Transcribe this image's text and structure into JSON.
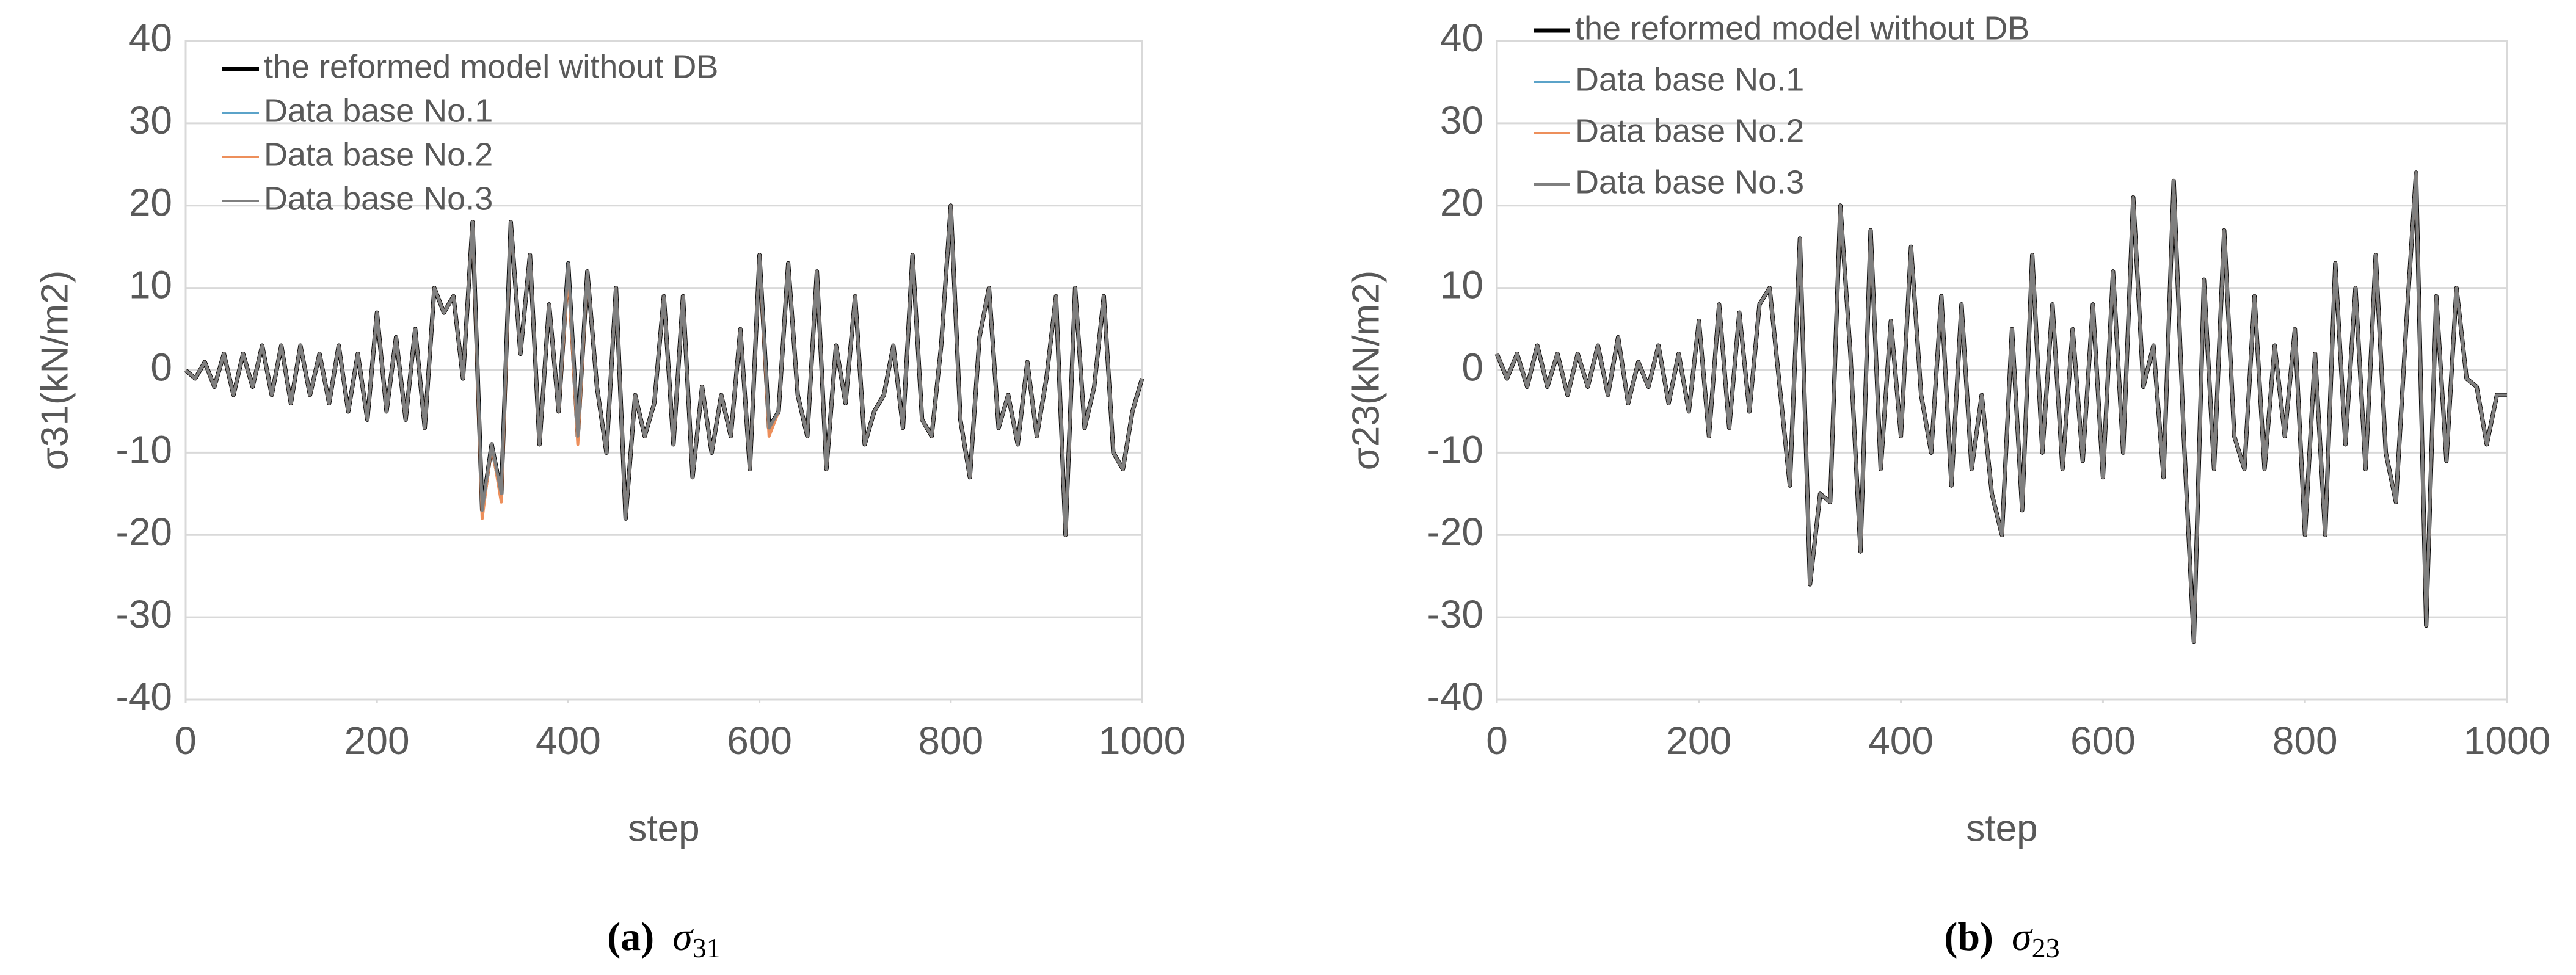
{
  "chart_data": [
    {
      "type": "line",
      "caption_label": "(a)",
      "caption_symbol": "σ",
      "caption_sub": "31",
      "xlabel": "step",
      "ylabel": "σ31(kN/m2)",
      "legend": "upper left",
      "grid": true,
      "xlim": [
        0,
        1000
      ],
      "xticks": [
        0,
        200,
        400,
        600,
        800,
        1000
      ],
      "ylim": [
        -40,
        40
      ],
      "yticks": [
        -40,
        -30,
        -20,
        -10,
        0,
        10,
        20,
        30,
        40
      ],
      "x": [
        0,
        10,
        20,
        30,
        40,
        50,
        60,
        70,
        80,
        90,
        100,
        110,
        120,
        130,
        140,
        150,
        160,
        170,
        180,
        190,
        200,
        210,
        220,
        230,
        240,
        250,
        260,
        270,
        280,
        290,
        300,
        310,
        320,
        330,
        340,
        350,
        360,
        370,
        380,
        390,
        400,
        410,
        420,
        430,
        440,
        450,
        460,
        470,
        480,
        490,
        500,
        510,
        520,
        530,
        540,
        550,
        560,
        570,
        580,
        590,
        600,
        610,
        620,
        630,
        640,
        650,
        660,
        670,
        680,
        690,
        700,
        710,
        720,
        730,
        740,
        750,
        760,
        770,
        780,
        790,
        800,
        810,
        820,
        830,
        840,
        850,
        860,
        870,
        880,
        890,
        900,
        910,
        920,
        930,
        940,
        950,
        960,
        970,
        980,
        990,
        1000
      ],
      "series": [
        {
          "name": "the reformed model without DB",
          "color": "#000000",
          "values": [
            0,
            -1,
            1,
            -2,
            2,
            -3,
            2,
            -2,
            3,
            -3,
            3,
            -4,
            3,
            -3,
            2,
            -4,
            3,
            -5,
            2,
            -6,
            7,
            -5,
            4,
            -6,
            5,
            -7,
            10,
            7,
            9,
            -1,
            18,
            -17,
            -9,
            -15,
            18,
            2,
            14,
            -9,
            8,
            -5,
            13,
            -8,
            12,
            -2,
            -10,
            10,
            -18,
            -3,
            -8,
            -4,
            9,
            -9,
            9,
            -13,
            -2,
            -10,
            -3,
            -8,
            5,
            -12,
            14,
            -7,
            -5,
            13,
            -3,
            -8,
            12,
            -12,
            3,
            -4,
            9,
            -9,
            -5,
            -3,
            3,
            -7,
            14,
            -6,
            -8,
            3,
            20,
            -6,
            -13,
            4,
            10,
            -7,
            -3,
            -9,
            1,
            -8,
            -1,
            9,
            -20,
            10,
            -7,
            -2,
            9,
            -10,
            -12,
            -5,
            -1
          ]
        },
        {
          "name": "Data base No.1",
          "color": "#5ba3c9",
          "values": [
            0,
            -1,
            1,
            -2,
            2,
            -3,
            2,
            -2,
            3,
            -3,
            3,
            -4,
            3,
            -3,
            2,
            -4,
            3,
            -5,
            2,
            -6,
            7,
            -5,
            4,
            -6,
            5,
            -7,
            10,
            7,
            9,
            -1,
            18,
            -17,
            -9,
            -15,
            18,
            2,
            14,
            -9,
            8,
            -5,
            13,
            -8,
            12,
            -2,
            -10,
            10,
            -18,
            -3,
            -8,
            -4,
            9,
            -9,
            9,
            -13,
            -2,
            -10,
            -3,
            -8,
            5,
            -12,
            14,
            -7,
            -5,
            13,
            -3,
            -8,
            12,
            -12,
            3,
            -4,
            9,
            -9,
            -5,
            -3,
            3,
            -7,
            14,
            -6,
            -8,
            3,
            20,
            -6,
            -13,
            4,
            10,
            -7,
            -3,
            -9,
            1,
            -8,
            -1,
            9,
            -20,
            10,
            -7,
            -2,
            9,
            -10,
            -12,
            -5,
            -1
          ]
        },
        {
          "name": "Data base No.2",
          "color": "#ed8f5b",
          "values": [
            0,
            -1,
            1,
            -2,
            2,
            -3,
            2,
            -2,
            3,
            -3,
            3,
            -4,
            3,
            -3,
            2,
            -4,
            3,
            -5,
            2,
            -6,
            7,
            -5,
            4,
            -6,
            5,
            -7,
            10,
            7,
            9,
            -1,
            18,
            -18,
            -9,
            -16,
            18,
            2,
            14,
            -9,
            8,
            -5,
            12,
            -9,
            12,
            -2,
            -10,
            10,
            -18,
            -3,
            -8,
            -4,
            9,
            -9,
            9,
            -13,
            -2,
            -10,
            -3,
            -8,
            5,
            -12,
            14,
            -8,
            -5,
            13,
            -3,
            -8,
            12,
            -12,
            3,
            -4,
            9,
            -9,
            -5,
            -3,
            3,
            -7,
            14,
            -6,
            -8,
            3,
            20,
            -6,
            -13,
            4,
            10,
            -7,
            -3,
            -9,
            1,
            -8,
            -1,
            9,
            -20,
            10,
            -7,
            -2,
            9,
            -10,
            -12,
            -5,
            -1
          ]
        },
        {
          "name": "Data base No.3",
          "color": "#7f7f7f",
          "values": [
            0,
            -1,
            1,
            -2,
            2,
            -3,
            2,
            -2,
            3,
            -3,
            3,
            -4,
            3,
            -3,
            2,
            -4,
            3,
            -5,
            2,
            -6,
            7,
            -5,
            4,
            -6,
            5,
            -7,
            10,
            7,
            9,
            -1,
            18,
            -17,
            -9,
            -15,
            18,
            2,
            14,
            -9,
            8,
            -5,
            13,
            -8,
            12,
            -2,
            -10,
            10,
            -18,
            -3,
            -8,
            -4,
            9,
            -9,
            9,
            -13,
            -2,
            -10,
            -3,
            -8,
            5,
            -12,
            14,
            -7,
            -5,
            13,
            -3,
            -8,
            12,
            -12,
            3,
            -4,
            9,
            -9,
            -5,
            -3,
            3,
            -7,
            14,
            -6,
            -8,
            3,
            20,
            -6,
            -13,
            4,
            10,
            -7,
            -3,
            -9,
            1,
            -8,
            -1,
            9,
            -20,
            10,
            -7,
            -2,
            9,
            -10,
            -12,
            -5,
            -1
          ]
        }
      ]
    },
    {
      "type": "line",
      "caption_label": "(b)",
      "caption_symbol": "σ",
      "caption_sub": "23",
      "xlabel": "step",
      "ylabel": "σ23(kN/m2)",
      "legend": "upper left",
      "grid": true,
      "xlim": [
        0,
        1000
      ],
      "xticks": [
        0,
        200,
        400,
        600,
        800,
        1000
      ],
      "ylim": [
        -40,
        40
      ],
      "yticks": [
        -40,
        -30,
        -20,
        -10,
        0,
        10,
        20,
        30,
        40
      ],
      "x": [
        0,
        10,
        20,
        30,
        40,
        50,
        60,
        70,
        80,
        90,
        100,
        110,
        120,
        130,
        140,
        150,
        160,
        170,
        180,
        190,
        200,
        210,
        220,
        230,
        240,
        250,
        260,
        270,
        280,
        290,
        300,
        310,
        320,
        330,
        340,
        350,
        360,
        370,
        380,
        390,
        400,
        410,
        420,
        430,
        440,
        450,
        460,
        470,
        480,
        490,
        500,
        510,
        520,
        530,
        540,
        550,
        560,
        570,
        580,
        590,
        600,
        610,
        620,
        630,
        640,
        650,
        660,
        670,
        680,
        690,
        700,
        710,
        720,
        730,
        740,
        750,
        760,
        770,
        780,
        790,
        800,
        810,
        820,
        830,
        840,
        850,
        860,
        870,
        880,
        890,
        900,
        910,
        920,
        930,
        940,
        950,
        960,
        970,
        980,
        990,
        1000
      ],
      "series": [
        {
          "name": "the reformed model without DB",
          "color": "#000000",
          "values": [
            2,
            -1,
            2,
            -2,
            3,
            -2,
            2,
            -3,
            2,
            -2,
            3,
            -3,
            4,
            -4,
            1,
            -2,
            3,
            -4,
            2,
            -5,
            6,
            -8,
            8,
            -7,
            7,
            -5,
            8,
            10,
            -2,
            -14,
            16,
            -26,
            -15,
            -16,
            20,
            2,
            -22,
            17,
            -12,
            6,
            -8,
            15,
            -3,
            -10,
            9,
            -14,
            8,
            -12,
            -3,
            -15,
            -20,
            5,
            -17,
            14,
            -10,
            8,
            -12,
            5,
            -11,
            8,
            -13,
            12,
            -10,
            21,
            -2,
            3,
            -13,
            23,
            -8,
            -33,
            11,
            -12,
            17,
            -8,
            -12,
            9,
            -12,
            3,
            -8,
            5,
            -20,
            2,
            -20,
            13,
            -9,
            10,
            -12,
            14,
            -10,
            -16,
            5,
            24,
            -31,
            9,
            -11,
            10,
            -1,
            -2,
            -9,
            -3,
            -3
          ]
        },
        {
          "name": "Data base No.1",
          "color": "#5ba3c9",
          "values": [
            2,
            -1,
            2,
            -2,
            3,
            -2,
            2,
            -3,
            2,
            -2,
            3,
            -3,
            4,
            -4,
            1,
            -2,
            3,
            -4,
            2,
            -5,
            6,
            -8,
            8,
            -7,
            7,
            -5,
            8,
            10,
            -2,
            -14,
            16,
            -26,
            -15,
            -16,
            20,
            2,
            -22,
            17,
            -12,
            6,
            -8,
            15,
            -3,
            -10,
            9,
            -14,
            8,
            -12,
            -3,
            -15,
            -20,
            5,
            -17,
            14,
            -10,
            8,
            -12,
            5,
            -11,
            8,
            -13,
            12,
            -10,
            21,
            -2,
            3,
            -13,
            23,
            -8,
            -33,
            11,
            -12,
            17,
            -8,
            -12,
            9,
            -12,
            3,
            -8,
            5,
            -20,
            2,
            -20,
            13,
            -9,
            10,
            -12,
            14,
            -10,
            -16,
            5,
            24,
            -31,
            9,
            -11,
            10,
            -1,
            -2,
            -9,
            -3,
            -3
          ]
        },
        {
          "name": "Data base No.2",
          "color": "#ed8f5b",
          "values": [
            2,
            -1,
            2,
            -2,
            3,
            -2,
            2,
            -3,
            2,
            -2,
            3,
            -3,
            4,
            -4,
            1,
            -2,
            3,
            -4,
            2,
            -5,
            6,
            -8,
            8,
            -7,
            7,
            -5,
            8,
            10,
            -2,
            -14,
            16,
            -26,
            -15,
            -16,
            20,
            2,
            -22,
            17,
            -12,
            6,
            -8,
            15,
            -3,
            -10,
            9,
            -14,
            8,
            -12,
            -3,
            -15,
            -20,
            5,
            -17,
            14,
            -10,
            8,
            -12,
            5,
            -11,
            8,
            -13,
            12,
            -10,
            21,
            -2,
            3,
            -13,
            23,
            -8,
            -33,
            11,
            -12,
            17,
            -8,
            -12,
            9,
            -12,
            3,
            -8,
            5,
            -20,
            2,
            -20,
            13,
            -9,
            10,
            -12,
            14,
            -10,
            -16,
            5,
            24,
            -31,
            9,
            -11,
            10,
            -1,
            -2,
            -9,
            -3,
            -3
          ]
        },
        {
          "name": "Data base No.3",
          "color": "#7f7f7f",
          "values": [
            2,
            -1,
            2,
            -2,
            3,
            -2,
            2,
            -3,
            2,
            -2,
            3,
            -3,
            4,
            -4,
            1,
            -2,
            3,
            -4,
            2,
            -5,
            6,
            -8,
            8,
            -7,
            7,
            -5,
            8,
            10,
            -2,
            -14,
            16,
            -26,
            -15,
            -16,
            20,
            2,
            -22,
            17,
            -12,
            6,
            -8,
            15,
            -3,
            -10,
            9,
            -14,
            8,
            -12,
            -3,
            -15,
            -20,
            5,
            -17,
            14,
            -10,
            8,
            -12,
            5,
            -11,
            8,
            -13,
            12,
            -10,
            21,
            -2,
            3,
            -13,
            23,
            -8,
            -33,
            11,
            -12,
            17,
            -8,
            -12,
            9,
            -12,
            3,
            -8,
            5,
            -20,
            2,
            -20,
            13,
            -9,
            10,
            -12,
            14,
            -10,
            -16,
            5,
            24,
            -31,
            9,
            -11,
            10,
            -1,
            -2,
            -9,
            -3,
            -3
          ]
        }
      ]
    }
  ]
}
